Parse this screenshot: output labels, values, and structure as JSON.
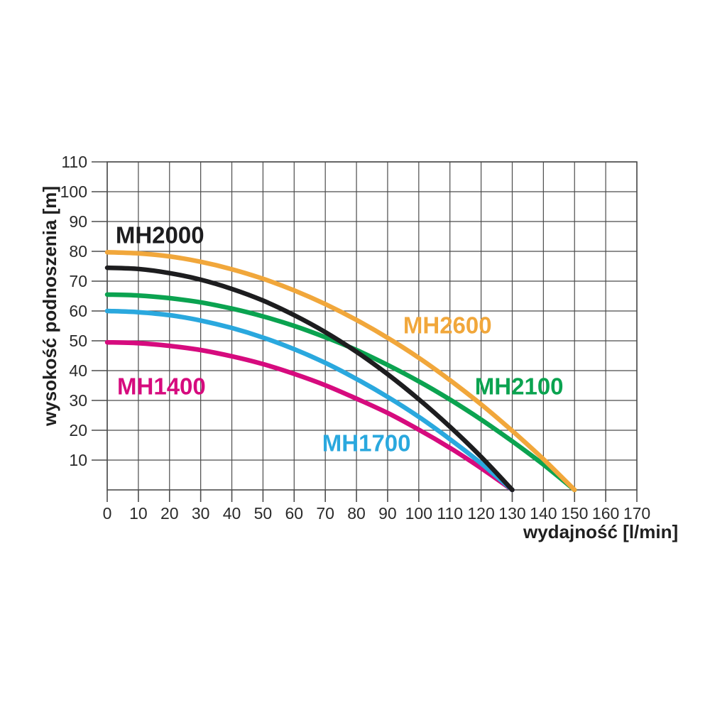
{
  "chart_data": {
    "type": "line",
    "title": "",
    "xlabel": "wydajność [l/min]",
    "ylabel": "wysokość podnoszenia [m]",
    "xlim": [
      0,
      170
    ],
    "ylim": [
      0,
      110
    ],
    "x_ticks": [
      0,
      10,
      20,
      30,
      40,
      50,
      60,
      70,
      80,
      90,
      100,
      110,
      120,
      130,
      140,
      150,
      160,
      170
    ],
    "y_ticks": [
      10,
      20,
      30,
      40,
      50,
      60,
      70,
      80,
      90,
      100,
      110
    ],
    "grid": true,
    "grid_color": "#4c4c4c",
    "tick_text_color": "#2a2a2a",
    "axis_title_color": "#1f1f1f",
    "background": "#ffffff",
    "legend_position": "labels-on-chart",
    "series": [
      {
        "name": "MH1400",
        "color": "#d60b7e",
        "label_pos": {
          "q": 3.2,
          "h": 34.8
        },
        "points": [
          [
            0,
            49.5
          ],
          [
            10,
            49.2
          ],
          [
            20,
            48.3
          ],
          [
            30,
            46.9
          ],
          [
            40,
            44.8
          ],
          [
            50,
            42.2
          ],
          [
            60,
            38.9
          ],
          [
            70,
            35.1
          ],
          [
            80,
            30.6
          ],
          [
            90,
            25.8
          ],
          [
            100,
            20.2
          ],
          [
            110,
            14.1
          ],
          [
            120,
            7.3
          ],
          [
            130,
            0
          ]
        ]
      },
      {
        "name": "MH1700",
        "color": "#2aa8de",
        "label_pos": {
          "q": 69,
          "h": 15.8
        },
        "points": [
          [
            0,
            60
          ],
          [
            10,
            59.6
          ],
          [
            20,
            58.6
          ],
          [
            30,
            56.8
          ],
          [
            40,
            54.3
          ],
          [
            50,
            51.1
          ],
          [
            60,
            47.2
          ],
          [
            70,
            42.6
          ],
          [
            80,
            37.2
          ],
          [
            90,
            31.2
          ],
          [
            100,
            24.5
          ],
          [
            110,
            17
          ],
          [
            120,
            8.9
          ],
          [
            130,
            0
          ]
        ]
      },
      {
        "name": "MH2100",
        "color": "#0ba350",
        "label_pos": {
          "q": 118,
          "h": 34.8
        },
        "points": [
          [
            0,
            65.5
          ],
          [
            10,
            65.2
          ],
          [
            20,
            64.3
          ],
          [
            30,
            62.9
          ],
          [
            40,
            60.8
          ],
          [
            50,
            58.2
          ],
          [
            60,
            55
          ],
          [
            70,
            51.2
          ],
          [
            80,
            46.9
          ],
          [
            90,
            41.9
          ],
          [
            100,
            36.4
          ],
          [
            110,
            30.3
          ],
          [
            120,
            23.6
          ],
          [
            130,
            16.3
          ],
          [
            140,
            8.5
          ],
          [
            150,
            0
          ]
        ]
      },
      {
        "name": "MH2000",
        "color": "#1d1d1f",
        "label_pos": {
          "q": 2.7,
          "h": 85.5
        },
        "points": [
          [
            0,
            74.5
          ],
          [
            10,
            74.1
          ],
          [
            20,
            72.7
          ],
          [
            30,
            70.5
          ],
          [
            40,
            67.4
          ],
          [
            50,
            63.5
          ],
          [
            60,
            58.6
          ],
          [
            70,
            52.9
          ],
          [
            80,
            46.3
          ],
          [
            90,
            38.8
          ],
          [
            100,
            30.4
          ],
          [
            110,
            21.2
          ],
          [
            120,
            11.1
          ],
          [
            130,
            0
          ]
        ]
      },
      {
        "name": "MH2600",
        "color": "#f1a73b",
        "label_pos": {
          "q": 95,
          "h": 55.2
        },
        "points": [
          [
            0,
            79.7
          ],
          [
            10,
            79.3
          ],
          [
            20,
            78.3
          ],
          [
            30,
            76.5
          ],
          [
            40,
            74
          ],
          [
            50,
            70.8
          ],
          [
            60,
            66.9
          ],
          [
            70,
            62.3
          ],
          [
            80,
            57
          ],
          [
            90,
            51
          ],
          [
            100,
            44.3
          ],
          [
            110,
            36.8
          ],
          [
            120,
            28.7
          ],
          [
            130,
            19.8
          ],
          [
            140,
            10.3
          ],
          [
            150,
            0
          ]
        ]
      }
    ]
  }
}
